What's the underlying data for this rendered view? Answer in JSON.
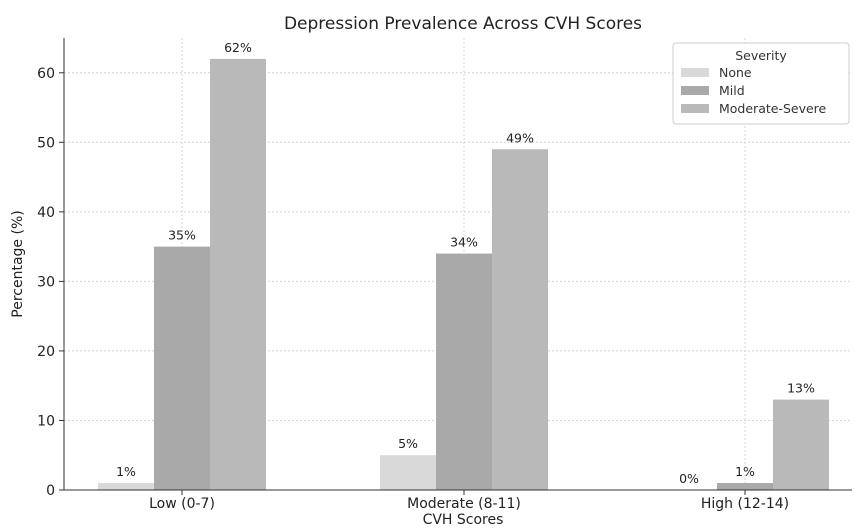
{
  "chart_data": {
    "type": "bar",
    "title": "Depression Prevalence Across CVH Scores",
    "xlabel": "CVH Scores",
    "ylabel": "Percentage (%)",
    "categories": [
      "Low (0-7)",
      "Moderate (8-11)",
      "High (12-14)"
    ],
    "ylim": [
      0,
      65
    ],
    "yticks": [
      0,
      10,
      20,
      30,
      40,
      50,
      60
    ],
    "grid": true,
    "legend": {
      "title": "Severity",
      "placement": "top-right"
    },
    "series": [
      {
        "name": "None",
        "values": [
          1,
          5,
          0
        ],
        "labels": [
          "1%",
          "5%",
          "0%"
        ],
        "color": "#d9d9d9"
      },
      {
        "name": "Mild",
        "values": [
          35,
          34,
          1
        ],
        "labels": [
          "35%",
          "34%",
          "1%"
        ],
        "color": "#a9a9a9"
      },
      {
        "name": "Moderate-Severe",
        "values": [
          62,
          49,
          13
        ],
        "labels": [
          "62%",
          "49%",
          "13%"
        ],
        "color": "#b9b9b9"
      }
    ]
  }
}
